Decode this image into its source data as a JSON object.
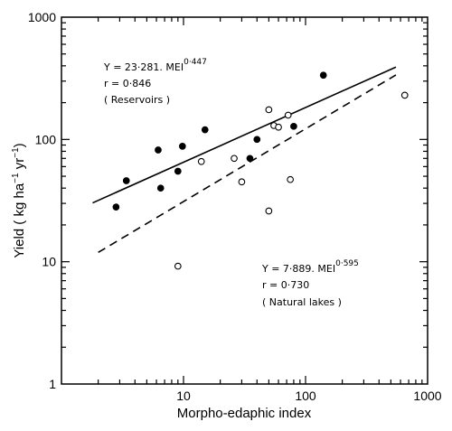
{
  "chart_data": {
    "type": "scatter",
    "title": "",
    "xlabel": "Morpho-edaphic index",
    "xscale": "log",
    "yscale": "log",
    "xlim": [
      1,
      1000
    ],
    "ylim": [
      1,
      1000
    ],
    "xticks": [
      {
        "value": 10,
        "label": "10"
      },
      {
        "value": 100,
        "label": "100"
      },
      {
        "value": 1000,
        "label": "1000"
      }
    ],
    "yticks": [
      {
        "value": 1,
        "label": "1"
      },
      {
        "value": 10,
        "label": "10"
      },
      {
        "value": 100,
        "label": "100"
      },
      {
        "value": 1000,
        "label": "1000"
      }
    ],
    "grid": false,
    "series": [
      {
        "marker": "filled-circle",
        "points": [
          {
            "x": 2.8,
            "y": 28
          },
          {
            "x": 3.4,
            "y": 46
          },
          {
            "x": 6.2,
            "y": 82
          },
          {
            "x": 6.5,
            "y": 40
          },
          {
            "x": 9.0,
            "y": 55
          },
          {
            "x": 9.8,
            "y": 88
          },
          {
            "x": 15,
            "y": 120
          },
          {
            "x": 35,
            "y": 70
          },
          {
            "x": 40,
            "y": 100
          },
          {
            "x": 80,
            "y": 128
          },
          {
            "x": 140,
            "y": 335
          }
        ],
        "fit": {
          "type": "power",
          "a": 23.281,
          "b": 0.447,
          "x_range": [
            1.8,
            550
          ],
          "style": "solid"
        }
      },
      {
        "marker": "open-circle",
        "points": [
          {
            "x": 9.0,
            "y": 9.2
          },
          {
            "x": 14,
            "y": 66
          },
          {
            "x": 26,
            "y": 70
          },
          {
            "x": 30,
            "y": 45
          },
          {
            "x": 50,
            "y": 175
          },
          {
            "x": 50,
            "y": 26
          },
          {
            "x": 55,
            "y": 130
          },
          {
            "x": 60,
            "y": 126
          },
          {
            "x": 72,
            "y": 158
          },
          {
            "x": 75,
            "y": 47
          },
          {
            "x": 650,
            "y": 230
          }
        ],
        "fit": {
          "type": "power",
          "a": 7.889,
          "b": 0.595,
          "x_range": [
            2.0,
            550
          ],
          "style": "dashed"
        }
      }
    ],
    "annotations": {
      "reservoirs": {
        "equation": "Y = 23·281. MEI",
        "exponent": "0·447",
        "r": "r = 0·846",
        "label": "( Reservoirs )"
      },
      "natural_lakes": {
        "equation": "Y = 7·889. MEI",
        "exponent": "0·595",
        "r": "r = 0·730",
        "label": "( Natural lakes )"
      }
    }
  }
}
